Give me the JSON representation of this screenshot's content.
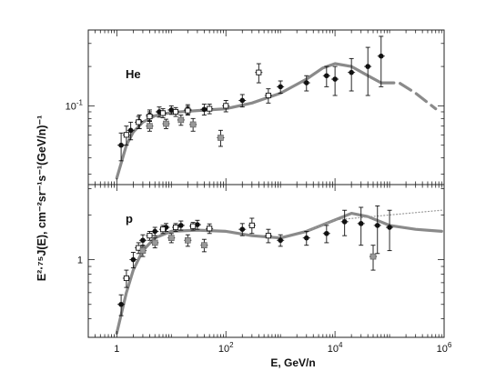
{
  "chart_data": {
    "type": "scatter",
    "xlabel": "E, GeV/n",
    "ylabel": "E²·⁷⁵J(E), cm⁻²sr⁻¹s⁻¹(GeV/n)⁻¹",
    "x_scale": "log",
    "xlim": [
      0.3,
      1000000
    ],
    "x_ticks": [
      {
        "value": 1,
        "label": "1"
      },
      {
        "value": 100,
        "base": "10",
        "exp": "2"
      },
      {
        "value": 10000,
        "base": "10",
        "exp": "4"
      },
      {
        "value": 1000000,
        "base": "10",
        "exp": "6"
      }
    ],
    "panels": [
      {
        "label": "He",
        "y_scale": "log",
        "ylim": [
          0.025,
          0.38
        ],
        "y_ticks": [
          {
            "value": 0.1,
            "base": "10",
            "exp": "-1"
          }
        ],
        "series": [
          {
            "marker": "filled-circle",
            "points": [
              {
                "x": 1.2,
                "y": 0.05,
                "err": 0.012
              },
              {
                "x": 1.8,
                "y": 0.065,
                "err": 0.01
              },
              {
                "x": 2.6,
                "y": 0.076,
                "err": 0.009
              },
              {
                "x": 4,
                "y": 0.085,
                "err": 0.008
              },
              {
                "x": 6,
                "y": 0.09,
                "err": 0.008
              },
              {
                "x": 10,
                "y": 0.093,
                "err": 0.007
              },
              {
                "x": 20,
                "y": 0.094,
                "err": 0.008
              },
              {
                "x": 40,
                "y": 0.094,
                "err": 0.009
              },
              {
                "x": 200,
                "y": 0.11,
                "err": 0.012
              },
              {
                "x": 1000,
                "y": 0.14,
                "err": 0.015
              },
              {
                "x": 3000,
                "y": 0.15,
                "err": 0.02
              },
              {
                "x": 7000,
                "y": 0.17,
                "err": 0.03
              },
              {
                "x": 10000,
                "y": 0.16,
                "err": 0.04
              },
              {
                "x": 20000,
                "y": 0.18,
                "err": 0.05
              },
              {
                "x": 40000,
                "y": 0.2,
                "err": 0.08
              },
              {
                "x": 70000,
                "y": 0.24,
                "err": 0.1
              }
            ]
          },
          {
            "marker": "open-square",
            "points": [
              {
                "x": 1.5,
                "y": 0.06,
                "err": 0.01
              },
              {
                "x": 2.5,
                "y": 0.075,
                "err": 0.008
              },
              {
                "x": 4,
                "y": 0.083,
                "err": 0.007
              },
              {
                "x": 7,
                "y": 0.088,
                "err": 0.007
              },
              {
                "x": 12,
                "y": 0.09,
                "err": 0.007
              },
              {
                "x": 20,
                "y": 0.092,
                "err": 0.007
              },
              {
                "x": 50,
                "y": 0.095,
                "err": 0.008
              },
              {
                "x": 100,
                "y": 0.1,
                "err": 0.01
              },
              {
                "x": 400,
                "y": 0.18,
                "err": 0.03
              },
              {
                "x": 600,
                "y": 0.12,
                "err": 0.015
              }
            ]
          },
          {
            "marker": "gray-square",
            "points": [
              {
                "x": 4,
                "y": 0.07,
                "err": 0.006
              },
              {
                "x": 8,
                "y": 0.073,
                "err": 0.006
              },
              {
                "x": 15,
                "y": 0.078,
                "err": 0.007
              },
              {
                "x": 25,
                "y": 0.072,
                "err": 0.008
              },
              {
                "x": 80,
                "y": 0.057,
                "err": 0.008
              }
            ]
          }
        ],
        "model_curves": [
          {
            "style": "solid",
            "points": [
              [
                1,
                0.028
              ],
              [
                1.5,
                0.05
              ],
              [
                2,
                0.063
              ],
              [
                3,
                0.075
              ],
              [
                5,
                0.084
              ],
              [
                10,
                0.089
              ],
              [
                30,
                0.092
              ],
              [
                100,
                0.095
              ],
              [
                300,
                0.105
              ],
              [
                1000,
                0.125
              ],
              [
                3000,
                0.16
              ],
              [
                6000,
                0.195
              ],
              [
                10000,
                0.21
              ],
              [
                20000,
                0.2
              ],
              [
                40000,
                0.17
              ],
              [
                70000,
                0.15
              ]
            ]
          },
          {
            "style": "dashed",
            "points": [
              [
                70000,
                0.15
              ],
              [
                150000,
                0.15
              ],
              [
                300000,
                0.125
              ],
              [
                700000,
                0.095
              ]
            ]
          }
        ]
      },
      {
        "label": "p",
        "y_scale": "log",
        "ylim": [
          0.3,
          3.2
        ],
        "y_ticks": [
          {
            "value": 1,
            "label": "1"
          }
        ],
        "series": [
          {
            "marker": "filled-circle",
            "points": [
              {
                "x": 1.2,
                "y": 0.5,
                "err": 0.08
              },
              {
                "x": 2,
                "y": 1.0,
                "err": 0.12
              },
              {
                "x": 3,
                "y": 1.35,
                "err": 0.12
              },
              {
                "x": 5,
                "y": 1.55,
                "err": 0.1
              },
              {
                "x": 8,
                "y": 1.65,
                "err": 0.1
              },
              {
                "x": 15,
                "y": 1.7,
                "err": 0.12
              },
              {
                "x": 30,
                "y": 1.72,
                "err": 0.12
              },
              {
                "x": 200,
                "y": 1.6,
                "err": 0.15
              },
              {
                "x": 1000,
                "y": 1.35,
                "err": 0.12
              },
              {
                "x": 3000,
                "y": 1.4,
                "err": 0.15
              },
              {
                "x": 7000,
                "y": 1.5,
                "err": 0.2
              },
              {
                "x": 15000,
                "y": 1.8,
                "err": 0.35
              },
              {
                "x": 30000,
                "y": 1.75,
                "err": 0.5
              },
              {
                "x": 60000,
                "y": 1.7,
                "err": 0.6
              },
              {
                "x": 100000,
                "y": 1.65,
                "err": 0.5
              }
            ]
          },
          {
            "marker": "open-square",
            "points": [
              {
                "x": 1.5,
                "y": 0.75,
                "err": 0.1
              },
              {
                "x": 2.5,
                "y": 1.2,
                "err": 0.1
              },
              {
                "x": 4,
                "y": 1.45,
                "err": 0.1
              },
              {
                "x": 7,
                "y": 1.6,
                "err": 0.1
              },
              {
                "x": 12,
                "y": 1.65,
                "err": 0.1
              },
              {
                "x": 25,
                "y": 1.68,
                "err": 0.1
              },
              {
                "x": 50,
                "y": 1.62,
                "err": 0.12
              },
              {
                "x": 300,
                "y": 1.7,
                "err": 0.2
              },
              {
                "x": 600,
                "y": 1.45,
                "err": 0.15
              }
            ]
          },
          {
            "marker": "gray-square",
            "points": [
              {
                "x": 3,
                "y": 1.15,
                "err": 0.1
              },
              {
                "x": 5,
                "y": 1.3,
                "err": 0.1
              },
              {
                "x": 10,
                "y": 1.4,
                "err": 0.1
              },
              {
                "x": 20,
                "y": 1.35,
                "err": 0.12
              },
              {
                "x": 40,
                "y": 1.25,
                "err": 0.12
              },
              {
                "x": 50000,
                "y": 1.05,
                "err": 0.2
              }
            ]
          }
        ],
        "model_curves": [
          {
            "style": "solid",
            "points": [
              [
                1,
                0.32
              ],
              [
                1.5,
                0.6
              ],
              [
                2,
                0.85
              ],
              [
                3,
                1.15
              ],
              [
                5,
                1.4
              ],
              [
                10,
                1.55
              ],
              [
                30,
                1.58
              ],
              [
                100,
                1.55
              ],
              [
                300,
                1.45
              ],
              [
                1000,
                1.4
              ],
              [
                3000,
                1.55
              ],
              [
                10000,
                1.85
              ],
              [
                20000,
                2.05
              ],
              [
                40000,
                1.95
              ],
              [
                100000,
                1.7
              ],
              [
                300000,
                1.6
              ],
              [
                900000,
                1.55
              ]
            ]
          },
          {
            "style": "dotted",
            "points": [
              [
                3000,
                1.55
              ],
              [
                10000,
                1.85
              ],
              [
                100000,
                2.0
              ],
              [
                900000,
                2.15
              ]
            ]
          }
        ]
      }
    ]
  }
}
